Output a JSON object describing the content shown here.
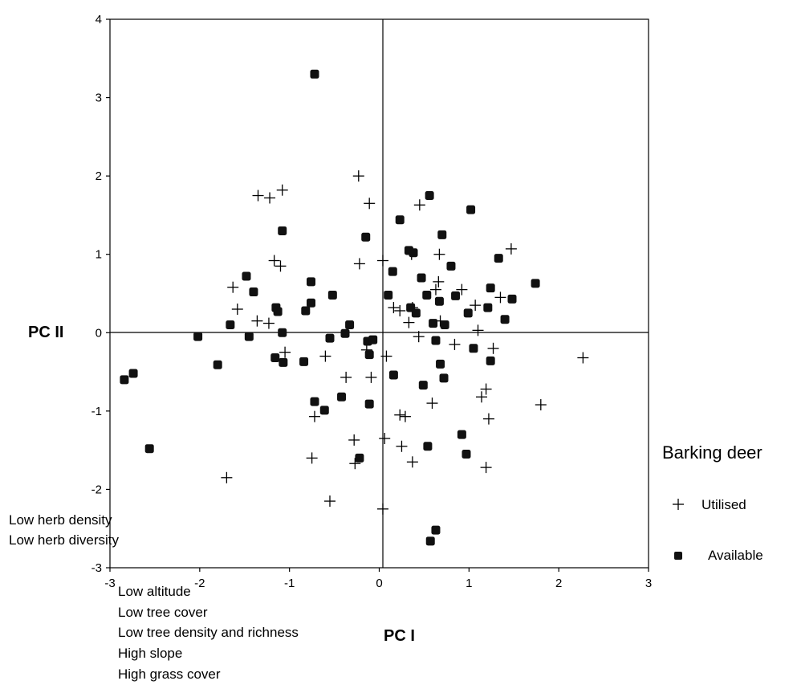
{
  "chart_data": {
    "type": "scatter",
    "xlabel": "PC I",
    "ylabel": "PC II",
    "xlim": [
      -3,
      3
    ],
    "ylim": [
      -3,
      4
    ],
    "xticks": [
      -3,
      -2,
      -1,
      0,
      1,
      2,
      3
    ],
    "yticks": [
      -3,
      -2,
      -1,
      0,
      1,
      2,
      3,
      4
    ],
    "grid": false,
    "zero_lines": true,
    "legend": {
      "title": "Barking deer",
      "position": "right",
      "entries": [
        "Utilised",
        "Available"
      ]
    },
    "series": [
      {
        "name": "Utilised",
        "marker": "plus",
        "points": [
          [
            -0.23,
            2.0
          ],
          [
            -1.35,
            1.75
          ],
          [
            -1.22,
            1.72
          ],
          [
            -1.08,
            1.82
          ],
          [
            -0.11,
            1.65
          ],
          [
            0.45,
            1.63
          ],
          [
            -0.22,
            0.88
          ],
          [
            0.04,
            0.92
          ],
          [
            -1.17,
            0.92
          ],
          [
            -1.1,
            0.85
          ],
          [
            0.36,
            1.0
          ],
          [
            0.67,
            1.0
          ],
          [
            1.47,
            1.07
          ],
          [
            -1.63,
            0.58
          ],
          [
            -1.58,
            0.3
          ],
          [
            -1.36,
            0.15
          ],
          [
            -1.23,
            0.12
          ],
          [
            0.66,
            0.65
          ],
          [
            0.63,
            0.55
          ],
          [
            0.92,
            0.55
          ],
          [
            1.35,
            0.45
          ],
          [
            1.07,
            0.35
          ],
          [
            0.16,
            0.32
          ],
          [
            0.23,
            0.28
          ],
          [
            0.37,
            0.32
          ],
          [
            0.33,
            0.13
          ],
          [
            0.68,
            0.15
          ],
          [
            1.1,
            0.03
          ],
          [
            -1.05,
            -0.25
          ],
          [
            -0.14,
            -0.22
          ],
          [
            0.08,
            -0.3
          ],
          [
            0.44,
            -0.05
          ],
          [
            0.84,
            -0.15
          ],
          [
            1.27,
            -0.2
          ],
          [
            2.27,
            -0.32
          ],
          [
            -0.6,
            -0.3
          ],
          [
            -0.37,
            -0.57
          ],
          [
            -0.09,
            -0.57
          ],
          [
            -0.72,
            -1.07
          ],
          [
            0.23,
            -1.05
          ],
          [
            0.29,
            -1.07
          ],
          [
            0.59,
            -0.9
          ],
          [
            1.14,
            -0.82
          ],
          [
            1.19,
            -0.72
          ],
          [
            1.22,
            -1.1
          ],
          [
            1.8,
            -0.92
          ],
          [
            -0.28,
            -1.37
          ],
          [
            0.06,
            -1.35
          ],
          [
            0.25,
            -1.45
          ],
          [
            -0.75,
            -1.6
          ],
          [
            -0.27,
            -1.67
          ],
          [
            0.37,
            -1.65
          ],
          [
            1.19,
            -1.72
          ],
          [
            -1.7,
            -1.85
          ],
          [
            -0.55,
            -2.15
          ],
          [
            0.04,
            -2.25
          ]
        ]
      },
      {
        "name": "Available",
        "marker": "square",
        "points": [
          [
            -0.72,
            3.3
          ],
          [
            0.56,
            1.75
          ],
          [
            1.02,
            1.57
          ],
          [
            0.23,
            1.44
          ],
          [
            -0.15,
            1.22
          ],
          [
            0.7,
            1.25
          ],
          [
            -1.08,
            1.3
          ],
          [
            0.33,
            1.05
          ],
          [
            0.38,
            1.02
          ],
          [
            0.8,
            0.85
          ],
          [
            1.33,
            0.95
          ],
          [
            -1.48,
            0.72
          ],
          [
            -0.76,
            0.65
          ],
          [
            0.15,
            0.78
          ],
          [
            0.47,
            0.7
          ],
          [
            -1.4,
            0.52
          ],
          [
            -0.52,
            0.48
          ],
          [
            0.1,
            0.48
          ],
          [
            0.53,
            0.48
          ],
          [
            0.67,
            0.4
          ],
          [
            0.85,
            0.47
          ],
          [
            1.24,
            0.57
          ],
          [
            1.48,
            0.43
          ],
          [
            1.74,
            0.63
          ],
          [
            1.21,
            0.32
          ],
          [
            -1.15,
            0.32
          ],
          [
            -1.13,
            0.27
          ],
          [
            -0.82,
            0.28
          ],
          [
            -0.76,
            0.38
          ],
          [
            0.35,
            0.32
          ],
          [
            0.41,
            0.25
          ],
          [
            0.73,
            0.1
          ],
          [
            0.6,
            0.12
          ],
          [
            0.99,
            0.25
          ],
          [
            1.4,
            0.17
          ],
          [
            -1.66,
            0.1
          ],
          [
            -0.33,
            0.1
          ],
          [
            -1.08,
            0.0
          ],
          [
            -1.45,
            -0.05
          ],
          [
            -2.02,
            -0.05
          ],
          [
            -0.38,
            -0.01
          ],
          [
            -0.55,
            -0.07
          ],
          [
            -0.13,
            -0.11
          ],
          [
            -0.07,
            -0.09
          ],
          [
            0.63,
            -0.1
          ],
          [
            1.05,
            -0.2
          ],
          [
            1.24,
            -0.36
          ],
          [
            -1.16,
            -0.32
          ],
          [
            -1.07,
            -0.38
          ],
          [
            -0.84,
            -0.37
          ],
          [
            -0.11,
            -0.28
          ],
          [
            -1.8,
            -0.41
          ],
          [
            -2.74,
            -0.52
          ],
          [
            -2.84,
            -0.6
          ],
          [
            0.16,
            -0.54
          ],
          [
            0.68,
            -0.4
          ],
          [
            0.72,
            -0.58
          ],
          [
            0.49,
            -0.67
          ],
          [
            -0.42,
            -0.82
          ],
          [
            -0.72,
            -0.88
          ],
          [
            -0.61,
            -0.99
          ],
          [
            -0.11,
            -0.91
          ],
          [
            -2.56,
            -1.48
          ],
          [
            0.54,
            -1.45
          ],
          [
            0.97,
            -1.55
          ],
          [
            0.92,
            -1.3
          ],
          [
            -0.22,
            -1.6
          ],
          [
            0.63,
            -2.52
          ],
          [
            0.57,
            -2.66
          ]
        ]
      }
    ],
    "annotations": {
      "negative_pc2": [
        "Low herb density",
        "Low herb diversity"
      ],
      "negative_pc1": [
        "Low altitude",
        "Low tree cover",
        "Low tree density and richness",
        "High slope",
        "High grass cover"
      ]
    }
  }
}
